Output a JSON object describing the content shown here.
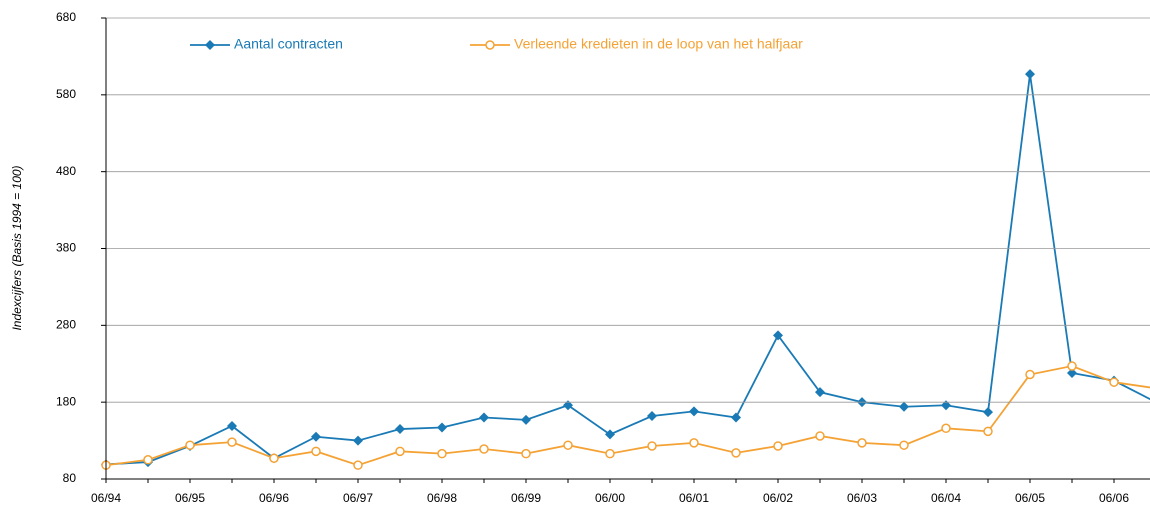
{
  "chart_data": {
    "type": "line",
    "y_label": "Indexcijfers (Basis 1994 = 100)",
    "categories": [
      "06/94",
      null,
      "06/95",
      null,
      "06/96",
      null,
      "06/97",
      null,
      "06/98",
      null,
      "06/99",
      null,
      "06/00",
      null,
      "06/01",
      null,
      "06/02",
      null,
      "06/03",
      null,
      "06/04",
      null,
      "06/05",
      null,
      "06/06",
      null
    ],
    "series": [
      {
        "name": "Aantal contracten",
        "color": "#1a7ab5",
        "marker": "diamond",
        "values": [
          99,
          102,
          123,
          149,
          107,
          135,
          130,
          145,
          147,
          160,
          157,
          176,
          138,
          162,
          168,
          160,
          267,
          193,
          180,
          174,
          176,
          167,
          607,
          218,
          208,
          180
        ]
      },
      {
        "name": "Verleende kredieten in de loop van het halfjaar",
        "color": "#f5a235",
        "marker": "circle",
        "values": [
          98,
          105,
          124,
          128,
          107,
          116,
          98,
          116,
          113,
          119,
          113,
          124,
          113,
          123,
          127,
          114,
          123,
          136,
          127,
          124,
          146,
          142,
          216,
          227,
          206,
          198
        ]
      }
    ],
    "ylim": [
      80,
      680
    ],
    "yticks": [
      80,
      180,
      280,
      380,
      480,
      580,
      680
    ],
    "grid": true,
    "legend": "top"
  }
}
